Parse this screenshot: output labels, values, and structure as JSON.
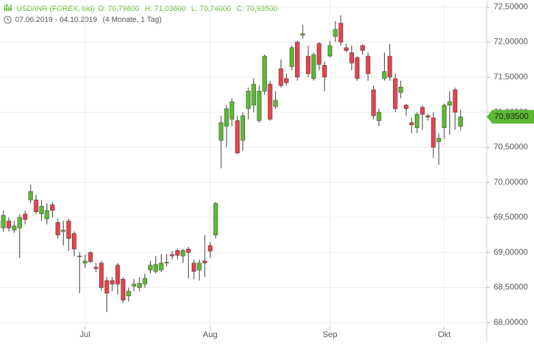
{
  "chart_data": {
    "type": "candlestick",
    "symbol": "USD/INR (FOREX, bid)",
    "ohlc_header": [
      {
        "key": "O:",
        "text": "70,79800"
      },
      {
        "key": "H:",
        "text": "71,03600"
      },
      {
        "key": "L:",
        "text": "70,74000"
      },
      {
        "key": "C:",
        "text": "70,93500"
      }
    ],
    "date_range": "07.06.2019 - 04.10.2019",
    "period": "(4 Monate, 1 Tag)",
    "categories": [
      null,
      null,
      null,
      null,
      null,
      null,
      null,
      null,
      null,
      null,
      null,
      null,
      null,
      null,
      null,
      null,
      "Jul",
      null,
      null,
      null,
      null,
      null,
      null,
      null,
      null,
      null,
      null,
      null,
      null,
      null,
      null,
      null,
      null,
      null,
      null,
      null,
      null,
      null,
      null,
      "Aug",
      null,
      null,
      null,
      null,
      null,
      null,
      null,
      null,
      null,
      null,
      null,
      null,
      null,
      null,
      null,
      null,
      null,
      null,
      null,
      null,
      null,
      "Sep",
      null,
      null,
      null,
      null,
      null,
      null,
      null,
      null,
      null,
      null,
      null,
      null,
      null,
      null,
      null,
      null,
      null,
      null,
      null,
      null,
      "Okt",
      null,
      null,
      null
    ],
    "open": [
      69.35,
      69.35,
      69.45,
      69.32,
      69.35,
      69.55,
      69.75,
      69.75,
      69.55,
      69.48,
      69.68,
      69.43,
      69.3,
      69.45,
      69.27,
      68.94,
      68.85,
      69.0,
      68.79,
      68.85,
      68.6,
      68.6,
      68.82,
      68.62,
      68.38,
      68.52,
      68.5,
      68.55,
      68.75,
      68.73,
      68.75,
      68.85,
      68.97,
      69.03,
      68.95,
      69.05,
      68.85,
      68.75,
      68.88,
      69.1,
      69.25,
      70.6,
      70.8,
      70.9,
      70.88,
      70.6,
      71.05,
      71.1,
      70.88,
      71.3,
      71.4,
      71.08,
      71.62,
      71.48,
      71.65,
      72.0,
      72.1,
      71.8,
      71.48,
      71.98,
      71.67,
      71.8,
      72.08,
      72.27,
      71.92,
      71.85,
      71.78,
      71.95,
      71.8,
      71.32,
      70.88,
      71.48,
      71.8,
      71.48,
      71.28,
      71.1,
      70.85,
      70.78,
      71.07,
      70.95,
      70.92,
      70.58,
      70.78,
      71.1,
      71.32,
      70.798
    ],
    "high": [
      69.55,
      69.6,
      69.5,
      69.45,
      69.55,
      69.6,
      69.97,
      69.82,
      69.75,
      69.7,
      69.72,
      69.48,
      69.45,
      69.48,
      69.3,
      69.0,
      68.97,
      69.02,
      68.85,
      68.88,
      68.65,
      68.65,
      68.85,
      68.65,
      68.5,
      68.62,
      68.65,
      68.7,
      68.88,
      68.95,
      68.98,
      68.98,
      69.02,
      69.05,
      69.05,
      69.08,
      68.9,
      68.9,
      69.25,
      69.15,
      69.72,
      70.95,
      71.1,
      71.2,
      70.95,
      71.0,
      71.35,
      71.48,
      71.38,
      71.82,
      71.45,
      71.3,
      71.75,
      71.55,
      71.95,
      72.02,
      72.25,
      71.95,
      71.85,
      72.0,
      71.72,
      72.02,
      72.3,
      72.38,
      71.98,
      71.95,
      71.8,
      71.97,
      71.85,
      71.38,
      71.05,
      71.85,
      71.97,
      71.55,
      71.45,
      71.12,
      70.92,
      71.0,
      71.1,
      70.98,
      71.0,
      70.7,
      71.12,
      71.3,
      71.35,
      71.036
    ],
    "low": [
      69.25,
      69.3,
      69.3,
      69.28,
      68.92,
      69.4,
      69.7,
      69.55,
      69.45,
      69.4,
      69.5,
      69.2,
      69.1,
      69.02,
      68.95,
      68.42,
      68.78,
      68.85,
      68.72,
      68.45,
      68.15,
      68.45,
      68.4,
      68.28,
      68.3,
      68.45,
      68.45,
      68.5,
      68.7,
      68.7,
      68.72,
      68.8,
      68.9,
      68.9,
      68.85,
      68.63,
      68.62,
      68.6,
      68.65,
      68.92,
      69.2,
      70.2,
      70.5,
      70.8,
      70.4,
      70.45,
      70.9,
      71.0,
      70.85,
      71.25,
      70.88,
      71.05,
      71.35,
      71.38,
      71.6,
      71.45,
      72.05,
      71.5,
      71.45,
      71.6,
      71.3,
      71.78,
      72.0,
      71.95,
      71.85,
      71.6,
      71.45,
      71.82,
      71.45,
      70.9,
      70.8,
      71.45,
      71.45,
      71.0,
      71.2,
      70.95,
      70.7,
      70.7,
      70.75,
      70.88,
      70.35,
      70.25,
      70.62,
      70.68,
      70.75,
      70.74
    ],
    "close": [
      69.45,
      69.53,
      69.35,
      69.38,
      69.5,
      69.47,
      69.87,
      69.58,
      69.66,
      69.6,
      69.6,
      69.25,
      69.32,
      69.2,
      69.05,
      68.95,
      68.88,
      68.87,
      68.77,
      68.5,
      68.42,
      68.55,
      68.55,
      68.32,
      68.45,
      68.55,
      68.56,
      68.63,
      68.82,
      68.83,
      68.85,
      68.86,
      68.95,
      68.96,
      69.03,
      69.0,
      68.73,
      68.85,
      68.85,
      69.02,
      69.7,
      70.85,
      71.05,
      71.15,
      70.42,
      70.95,
      71.3,
      71.4,
      71.3,
      71.8,
      70.9,
      71.17,
      71.38,
      71.42,
      71.92,
      71.5,
      72.12,
      71.55,
      71.82,
      71.68,
      71.5,
      71.95,
      72.18,
      72.0,
      71.88,
      71.7,
      71.48,
      71.88,
      71.55,
      70.95,
      71.0,
      71.58,
      71.5,
      71.05,
      71.36,
      71.05,
      70.82,
      70.97,
      70.97,
      70.93,
      70.5,
      70.63,
      71.1,
      71.15,
      71.0,
      70.935
    ],
    "up_color": "#5cb833",
    "down_color": "#e5434d",
    "ylim": [
      67.94,
      72.6
    ],
    "yticks": [
      {
        "value": 68.0,
        "label": "68,00000"
      },
      {
        "value": 68.5,
        "label": "68,50000"
      },
      {
        "value": 69.0,
        "label": "69,00000"
      },
      {
        "value": 69.5,
        "label": "69,50000"
      },
      {
        "value": 70.0,
        "label": "70,00000"
      },
      {
        "value": 70.5,
        "label": "70,50000"
      },
      {
        "value": 71.0,
        "label": "71,00000"
      },
      {
        "value": 71.5,
        "label": "71,50000"
      },
      {
        "value": 72.0,
        "label": "72,00000"
      },
      {
        "value": 72.5,
        "label": "72,50000"
      }
    ],
    "last_price": {
      "value": 70.935,
      "label": "70,93500"
    },
    "grid": true
  }
}
